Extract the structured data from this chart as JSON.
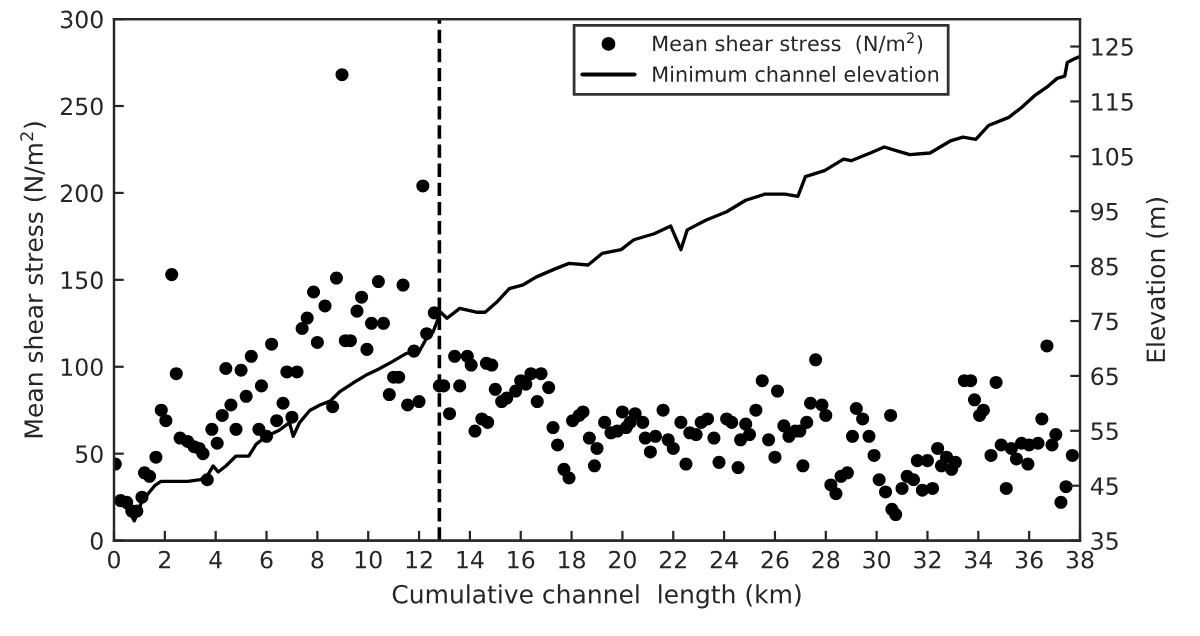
{
  "chart_data": {
    "type": "scatter",
    "xlabel": "Cumulative channel  length (km)",
    "ylabel": "Mean shear stress (N/m$^{2}$)",
    "y2label": "Elevation (m)",
    "xlim": [
      0,
      38
    ],
    "xticks": [
      0,
      2,
      4,
      6,
      8,
      10,
      12,
      14,
      16,
      18,
      20,
      22,
      24,
      26,
      28,
      30,
      32,
      34,
      36,
      38
    ],
    "ylim": [
      0,
      300
    ],
    "yticks": [
      0,
      50,
      100,
      150,
      200,
      250,
      300
    ],
    "y2lim": [
      35,
      130
    ],
    "y2ticks": [
      35,
      45,
      55,
      65,
      75,
      85,
      95,
      105,
      115,
      125
    ],
    "grid": false,
    "legend": "top right",
    "ref_lines": [
      {
        "axis": "x",
        "value": 12.8,
        "label": null,
        "color": "#000000",
        "line_style": "dashed"
      }
    ],
    "series": [
      {
        "name": "Mean shear stress  (N/m$^{2}$)",
        "color": "#000000",
        "marker": "circle",
        "x": [
          0.05,
          0.26,
          0.5,
          0.7,
          0.9,
          1.1,
          1.2,
          1.4,
          1.65,
          1.86,
          2.04,
          2.27,
          2.45,
          2.6,
          2.9,
          3.15,
          3.35,
          3.5,
          3.67,
          3.85,
          4.06,
          4.26,
          4.4,
          4.6,
          4.8,
          5.0,
          5.2,
          5.4,
          5.7,
          5.8,
          6.0,
          6.2,
          6.4,
          6.65,
          6.8,
          7.0,
          7.2,
          7.4,
          7.6,
          7.85,
          8.0,
          8.3,
          8.6,
          8.75,
          8.97,
          9.1,
          9.3,
          9.56,
          9.74,
          9.95,
          10.13,
          10.4,
          10.6,
          10.83,
          11.0,
          11.2,
          11.37,
          11.55,
          11.8,
          12.0,
          12.15,
          12.3,
          12.6,
          12.8,
          12.97,
          13.2,
          13.4,
          13.6,
          13.9,
          14.05,
          14.2,
          14.47,
          14.65,
          14.7,
          14.86,
          15.0,
          15.25,
          15.45,
          15.8,
          16.0,
          16.2,
          16.4,
          16.65,
          16.8,
          17.1,
          17.27,
          17.45,
          17.7,
          17.9,
          18.04,
          18.3,
          18.45,
          18.7,
          18.9,
          19.0,
          19.3,
          19.55,
          19.8,
          20.0,
          20.15,
          20.3,
          20.5,
          20.8,
          20.9,
          21.1,
          21.3,
          21.6,
          21.8,
          22.0,
          22.3,
          22.5,
          22.65,
          22.9,
          23.1,
          23.35,
          23.6,
          23.8,
          24.1,
          24.3,
          24.55,
          24.65,
          24.85,
          25.0,
          25.25,
          25.5,
          25.75,
          26.0,
          26.1,
          26.35,
          26.55,
          26.8,
          26.98,
          27.1,
          27.25,
          27.4,
          27.6,
          27.85,
          28.0,
          28.2,
          28.4,
          28.6,
          28.85,
          29.05,
          29.2,
          29.45,
          29.7,
          29.9,
          30.1,
          30.35,
          30.55,
          30.6,
          30.75,
          31.0,
          31.2,
          31.45,
          31.6,
          31.8,
          32.0,
          32.2,
          32.4,
          32.55,
          32.75,
          32.95,
          33.1,
          33.45,
          33.7,
          33.85,
          34.05,
          34.2,
          34.5,
          34.7,
          34.9,
          35.1,
          35.3,
          35.5,
          35.7,
          35.95,
          36.0,
          36.35,
          36.5,
          36.7,
          36.9,
          37.05,
          37.25,
          37.45,
          37.7
        ],
        "values": [
          44,
          23,
          22,
          17,
          17,
          25,
          39,
          37,
          48,
          75,
          69,
          153,
          96,
          59,
          57,
          54,
          53,
          50,
          35,
          64,
          56,
          72,
          99,
          78,
          64,
          98,
          83,
          106,
          64,
          89,
          60,
          113,
          69,
          79,
          97,
          71,
          97,
          122,
          128,
          143,
          114,
          135,
          77,
          151,
          268,
          115,
          115,
          132,
          140,
          110,
          125,
          149,
          125,
          84,
          94,
          94,
          147,
          78,
          109,
          80,
          204,
          119,
          131,
          89,
          89,
          73,
          106,
          89,
          106,
          101,
          63,
          70,
          102,
          68,
          101,
          87,
          80,
          82,
          86,
          92,
          90,
          96,
          80,
          96,
          88,
          65,
          55,
          41,
          36,
          69,
          72,
          74,
          59,
          43,
          53,
          68,
          62,
          63,
          74,
          65,
          68,
          73,
          68,
          59,
          51,
          60,
          75,
          58,
          53,
          68,
          44,
          62,
          61,
          68,
          70,
          59,
          45,
          70,
          68,
          42,
          58,
          67,
          61,
          75,
          92,
          58,
          48,
          86,
          66,
          60,
          63,
          63,
          43,
          68,
          79,
          104,
          78,
          72,
          32,
          27,
          37,
          39,
          60,
          76,
          70,
          60,
          49,
          35,
          28,
          72,
          18,
          15,
          30,
          37,
          35,
          46,
          29,
          46,
          30,
          53,
          43,
          48,
          41,
          45,
          92,
          92,
          81,
          72,
          75,
          49,
          91,
          55,
          30,
          53,
          47,
          56,
          44,
          55,
          56,
          70,
          112,
          55,
          61,
          22,
          31,
          49
        ]
      },
      {
        "name": "Minimum channel elevation",
        "type": "line",
        "axis": "y2",
        "color": "#000000",
        "marker": "none",
        "line_style": "solid",
        "x": [
          0.05,
          0.55,
          0.8,
          1.1,
          1.6,
          1.85,
          2.4,
          2.9,
          3.4,
          3.67,
          3.9,
          4.1,
          4.4,
          4.8,
          5.3,
          5.6,
          6.0,
          6.5,
          6.9,
          7.05,
          7.3,
          7.7,
          8.1,
          8.5,
          8.9,
          9.4,
          9.9,
          10.4,
          10.95,
          11.5,
          12.0,
          12.3,
          12.55,
          12.85,
          13.1,
          13.6,
          14.25,
          14.6,
          15.05,
          15.55,
          16.1,
          16.6,
          17.35,
          17.9,
          18.65,
          19.2,
          19.95,
          20.45,
          21.25,
          21.9,
          22.3,
          22.55,
          23.3,
          24.1,
          24.85,
          25.6,
          26.4,
          26.9,
          27.2,
          27.95,
          28.7,
          29.0,
          29.75,
          30.3,
          30.8,
          31.3,
          32.1,
          32.9,
          33.4,
          33.9,
          34.4,
          35.2,
          35.7,
          36.2,
          36.75,
          37.1,
          37.4,
          37.5,
          37.8,
          38.0
        ],
        "values": [
          42.5,
          40.7,
          38.6,
          42.2,
          45.0,
          45.8,
          45.8,
          45.8,
          46.1,
          46.8,
          48.6,
          47.5,
          48.6,
          50.4,
          50.4,
          52.6,
          54.0,
          55.1,
          56.5,
          54.0,
          56.5,
          58.7,
          59.7,
          60.4,
          62.2,
          63.7,
          65.1,
          66.2,
          67.6,
          69.1,
          69.4,
          71.9,
          73.0,
          76.6,
          75.5,
          77.3,
          76.6,
          76.6,
          78.4,
          80.9,
          81.6,
          83.0,
          84.5,
          85.5,
          85.2,
          87.3,
          88.0,
          89.8,
          90.9,
          92.3,
          88.0,
          91.6,
          93.4,
          94.9,
          97.0,
          98.1,
          98.1,
          97.7,
          101.3,
          102.4,
          104.5,
          104.2,
          105.6,
          106.7,
          106.0,
          105.3,
          105.6,
          107.8,
          108.5,
          108.1,
          110.6,
          112.1,
          113.9,
          116.0,
          117.8,
          119.2,
          119.6,
          122.1,
          122.8,
          123.2
        ]
      }
    ]
  }
}
